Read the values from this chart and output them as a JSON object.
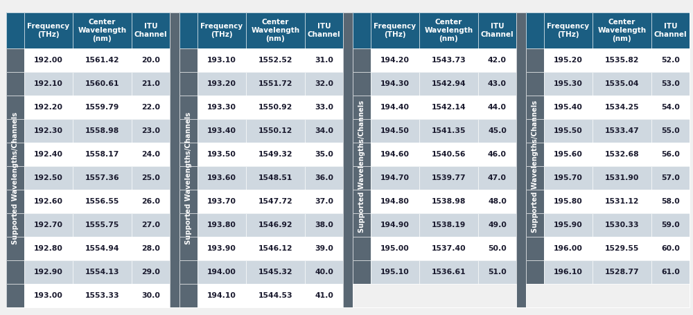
{
  "sections": [
    {
      "label": "Supported Wavelengths/Channels",
      "rows": [
        [
          "192.00",
          "1561.42",
          "20.0"
        ],
        [
          "192.10",
          "1560.61",
          "21.0"
        ],
        [
          "192.20",
          "1559.79",
          "22.0"
        ],
        [
          "192.30",
          "1558.98",
          "23.0"
        ],
        [
          "192.40",
          "1558.17",
          "24.0"
        ],
        [
          "192.50",
          "1557.36",
          "25.0"
        ],
        [
          "192.60",
          "1556.55",
          "26.0"
        ],
        [
          "192.70",
          "1555.75",
          "27.0"
        ],
        [
          "192.80",
          "1554.94",
          "28.0"
        ],
        [
          "192.90",
          "1554.13",
          "29.0"
        ],
        [
          "193.00",
          "1553.33",
          "30.0"
        ]
      ]
    },
    {
      "label": "Supported Wavelengths/Channels",
      "rows": [
        [
          "193.10",
          "1552.52",
          "31.0"
        ],
        [
          "193.20",
          "1551.72",
          "32.0"
        ],
        [
          "193.30",
          "1550.92",
          "33.0"
        ],
        [
          "193.40",
          "1550.12",
          "34.0"
        ],
        [
          "193.50",
          "1549.32",
          "35.0"
        ],
        [
          "193.60",
          "1548.51",
          "36.0"
        ],
        [
          "193.70",
          "1547.72",
          "37.0"
        ],
        [
          "193.80",
          "1546.92",
          "38.0"
        ],
        [
          "193.90",
          "1546.12",
          "39.0"
        ],
        [
          "194.00",
          "1545.32",
          "40.0"
        ],
        [
          "194.10",
          "1544.53",
          "41.0"
        ]
      ]
    },
    {
      "label": "Supported Wavelengths/Channels",
      "rows": [
        [
          "194.20",
          "1543.73",
          "42.0"
        ],
        [
          "194.30",
          "1542.94",
          "43.0"
        ],
        [
          "194.40",
          "1542.14",
          "44.0"
        ],
        [
          "194.50",
          "1541.35",
          "45.0"
        ],
        [
          "194.60",
          "1540.56",
          "46.0"
        ],
        [
          "194.70",
          "1539.77",
          "47.0"
        ],
        [
          "194.80",
          "1538.98",
          "48.0"
        ],
        [
          "194.90",
          "1538.19",
          "49.0"
        ],
        [
          "195.00",
          "1537.40",
          "50.0"
        ],
        [
          "195.10",
          "1536.61",
          "51.0"
        ]
      ]
    },
    {
      "label": "Supported Wavelengths/Channels",
      "rows": [
        [
          "195.20",
          "1535.82",
          "52.0"
        ],
        [
          "195.30",
          "1535.04",
          "53.0"
        ],
        [
          "195.40",
          "1534.25",
          "54.0"
        ],
        [
          "195.50",
          "1533.47",
          "55.0"
        ],
        [
          "195.60",
          "1532.68",
          "56.0"
        ],
        [
          "195.70",
          "1531.90",
          "57.0"
        ],
        [
          "195.80",
          "1531.12",
          "58.0"
        ],
        [
          "195.90",
          "1530.33",
          "59.0"
        ],
        [
          "196.00",
          "1529.55",
          "60.0"
        ],
        [
          "196.10",
          "1528.77",
          "61.0"
        ]
      ]
    }
  ],
  "col_headers": [
    "Frequency\n(THz)",
    "Center\nWavelength\n(nm)",
    "ITU\nChannel"
  ],
  "header_bg": "#1b5e82",
  "header_text": "#ffffff",
  "row_bg_white": "#ffffff",
  "row_bg_gray": "#cfd8e0",
  "label_bg": "#596773",
  "label_text": "#ffffff",
  "cell_text": "#1a1a2e",
  "bg_color": "#f0f0f0",
  "font_size": 7.8,
  "header_font_size": 7.5,
  "label_font_size": 7.2
}
